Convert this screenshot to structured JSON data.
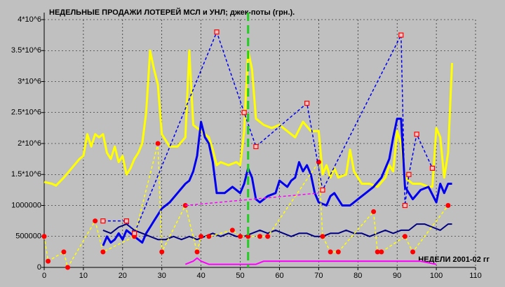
{
  "chart_data": {
    "type": "line",
    "title": "НЕДЕЛЬНЫЕ ПРОДАЖИ ЛОТЕРЕЙ МСЛ и УНЛ; джек-поты (грн.).",
    "x_label": "НЕДЕЛИ 2001-02 гг",
    "xlim": [
      0,
      110
    ],
    "xticks": [
      0,
      10,
      20,
      30,
      40,
      50,
      60,
      70,
      80,
      90,
      100,
      110
    ],
    "ylim": [
      0,
      4000000
    ],
    "yticks": [
      0,
      500000,
      1000000,
      {
        "value": 1500000,
        "label": "1.5*10^6"
      },
      {
        "value": 2000000,
        "label": "2*10^6"
      },
      {
        "value": 2500000,
        "label": "2.5*10^6"
      },
      {
        "value": 3000000,
        "label": "3*10^6"
      },
      {
        "value": 3500000,
        "label": "3.5*10^6"
      },
      {
        "value": 4000000,
        "label": "4*10^6"
      }
    ],
    "grid": true,
    "vline": {
      "x": 52,
      "color": "#22cc22"
    },
    "series": [
      {
        "color": "#ffff00",
        "style": "solid",
        "width": 3,
        "x": [
          0,
          2,
          3,
          5,
          7,
          9,
          10,
          11,
          12,
          13,
          14,
          15,
          16,
          17,
          18,
          19,
          20,
          21,
          22,
          23,
          24,
          25,
          26,
          27,
          28,
          29,
          30,
          32,
          34,
          36,
          37,
          38,
          40,
          42,
          43,
          44,
          45,
          47,
          49,
          50,
          51,
          52,
          53,
          54,
          56,
          58,
          60,
          62,
          64,
          66,
          68,
          70,
          71,
          72,
          73,
          74,
          75,
          77,
          78,
          79,
          81,
          83,
          85,
          87,
          88,
          89,
          90,
          91,
          92,
          94,
          96,
          98,
          99,
          100,
          101,
          102,
          103,
          104
        ],
        "values": [
          1380000,
          1350000,
          1320000,
          1450000,
          1600000,
          1750000,
          1800000,
          2150000,
          1950000,
          2150000,
          2100000,
          2150000,
          1850000,
          1750000,
          1950000,
          1700000,
          1800000,
          1500000,
          1600000,
          1750000,
          1850000,
          2000000,
          2500000,
          3500000,
          3200000,
          2950000,
          2150000,
          1950000,
          1950000,
          2100000,
          3500000,
          2300000,
          2200000,
          2100000,
          1900000,
          1650000,
          1700000,
          1650000,
          1700000,
          1650000,
          2200000,
          3500000,
          3200000,
          2400000,
          2300000,
          2250000,
          2300000,
          2200000,
          2100000,
          2350000,
          2200000,
          2200000,
          1500000,
          1650000,
          1450000,
          1600000,
          1450000,
          1500000,
          1900000,
          1550000,
          1350000,
          1350000,
          1300000,
          1450000,
          1650000,
          1550000,
          2200000,
          2000000,
          1450000,
          1350000,
          1350000,
          1300000,
          1300000,
          2250000,
          2100000,
          1450000,
          1850000,
          3300000
        ]
      },
      {
        "color": "#0000ee",
        "style": "solid",
        "width": 3,
        "x": [
          15,
          16,
          17,
          18,
          19,
          20,
          21,
          22,
          23,
          24,
          25,
          26,
          27,
          28,
          29,
          30,
          32,
          34,
          36,
          37,
          38,
          39,
          40,
          41,
          42,
          43,
          44,
          46,
          48,
          50,
          51,
          52,
          53,
          54,
          55,
          57,
          59,
          60,
          61,
          62,
          63,
          64,
          65,
          66,
          67,
          68,
          69,
          70,
          72,
          73,
          74,
          76,
          78,
          80,
          82,
          84,
          86,
          88,
          89,
          90,
          91,
          92,
          93,
          94,
          96,
          98,
          100,
          101,
          102,
          103,
          104
        ],
        "values": [
          350000,
          500000,
          400000,
          450000,
          550000,
          450000,
          600000,
          550000,
          500000,
          450000,
          400000,
          550000,
          650000,
          750000,
          850000,
          950000,
          1050000,
          1200000,
          1350000,
          1400000,
          1550000,
          1800000,
          2350000,
          2100000,
          2000000,
          1700000,
          1200000,
          1200000,
          1300000,
          1200000,
          1350000,
          1600000,
          1450000,
          1100000,
          1050000,
          1150000,
          1200000,
          1400000,
          1350000,
          1300000,
          1400000,
          1450000,
          1700000,
          1550000,
          1650000,
          1500000,
          1200000,
          1050000,
          1000000,
          1150000,
          1200000,
          1000000,
          1000000,
          1100000,
          1200000,
          1300000,
          1450000,
          1750000,
          2100000,
          2400000,
          2400000,
          1300000,
          1200000,
          1100000,
          1250000,
          1300000,
          1050000,
          1350000,
          1200000,
          1350000,
          1350000
        ]
      },
      {
        "color": "#000080",
        "style": "solid",
        "width": 2,
        "x": [
          15,
          17,
          19,
          21,
          23,
          25,
          27,
          29,
          31,
          33,
          35,
          37,
          39,
          41,
          43,
          45,
          47,
          49,
          51,
          53,
          55,
          57,
          59,
          61,
          63,
          65,
          67,
          69,
          71,
          73,
          75,
          77,
          79,
          81,
          83,
          85,
          87,
          89,
          91,
          93,
          95,
          97,
          99,
          101,
          103,
          104
        ],
        "values": [
          600000,
          550000,
          650000,
          700000,
          600000,
          550000,
          500000,
          450000,
          450000,
          500000,
          450000,
          500000,
          450000,
          500000,
          550000,
          500000,
          550000,
          500000,
          500000,
          550000,
          600000,
          550000,
          600000,
          550000,
          500000,
          550000,
          550000,
          500000,
          500000,
          550000,
          550000,
          600000,
          550000,
          550000,
          500000,
          550000,
          600000,
          550000,
          600000,
          600000,
          700000,
          700000,
          650000,
          600000,
          700000,
          700000
        ]
      },
      {
        "color": "#ff00ff",
        "style": "solid",
        "width": 2,
        "x": [
          36,
          38,
          39,
          40,
          42,
          46,
          50,
          54,
          56,
          60,
          70,
          80,
          90,
          96,
          100
        ],
        "values": [
          50000,
          100000,
          150000,
          100000,
          50000,
          50000,
          50000,
          50000,
          100000,
          100000,
          100000,
          100000,
          100000,
          100000,
          50000
        ]
      },
      {
        "color": "#ffff00",
        "style": "dashed",
        "width": 1.5,
        "marker": "circle",
        "marker_color": "#ff0000",
        "x": [
          0,
          1,
          5,
          6,
          13,
          15,
          23,
          29,
          30,
          36,
          39,
          40,
          42,
          48,
          50,
          52,
          55,
          57,
          70,
          71,
          73,
          75,
          84,
          85,
          86,
          92,
          94,
          103
        ],
        "values": [
          500000,
          100000,
          250000,
          0,
          750000,
          250000,
          500000,
          2000000,
          250000,
          1000000,
          250000,
          500000,
          500000,
          600000,
          500000,
          500000,
          500000,
          500000,
          1700000,
          500000,
          250000,
          250000,
          900000,
          250000,
          250000,
          500000,
          250000,
          1000000
        ]
      },
      {
        "color": "#0000ee",
        "style": "dashed",
        "width": 1.5,
        "marker": "square",
        "marker_color": "#ff0000",
        "x": [
          15,
          21,
          23,
          44,
          51,
          54,
          67,
          71,
          91,
          92,
          93,
          95,
          99
        ],
        "values": [
          750000,
          750000,
          550000,
          3800000,
          2500000,
          1950000,
          2650000,
          1250000,
          3750000,
          1000000,
          1500000,
          2150000,
          1600000
        ]
      },
      {
        "color": "#ff00ff",
        "style": "dashed",
        "width": 1.5,
        "x": [
          36,
          70,
          71,
          103
        ],
        "values": [
          1000000,
          1200000,
          null,
          800000
        ]
      }
    ]
  }
}
